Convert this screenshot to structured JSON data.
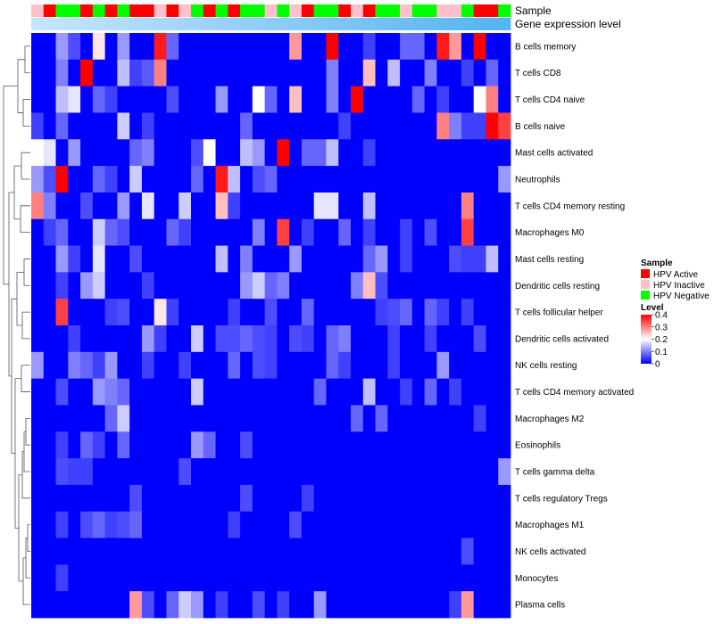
{
  "chart_data": {
    "type": "heatmap",
    "annotations": [
      {
        "name": "Sample"
      },
      {
        "name": "Gene expression level"
      }
    ],
    "sample_groups": [
      {
        "label": "HPV Active",
        "color": "#ff0000"
      },
      {
        "label": "HPV Inactive",
        "color": "#ffc0cb"
      },
      {
        "label": "HPV Negative",
        "color": "#00ff00"
      }
    ],
    "sample_track": [
      1,
      0,
      2,
      2,
      0,
      2,
      0,
      2,
      0,
      0,
      1,
      0,
      1,
      2,
      0,
      2,
      0,
      2,
      2,
      1,
      2,
      1,
      0,
      2,
      2,
      0,
      1,
      0,
      2,
      2,
      1,
      2,
      2,
      1,
      1,
      2,
      0,
      0,
      2
    ],
    "expression_track": [
      0.0,
      0.03,
      0.05,
      0.08,
      0.1,
      0.13,
      0.16,
      0.18,
      0.21,
      0.24,
      0.26,
      0.29,
      0.32,
      0.34,
      0.37,
      0.39,
      0.42,
      0.45,
      0.47,
      0.5,
      0.53,
      0.55,
      0.58,
      0.61,
      0.63,
      0.66,
      0.68,
      0.71,
      0.74,
      0.76,
      0.79,
      0.82,
      0.84,
      0.87,
      0.89,
      0.92,
      0.95,
      0.97,
      1.0
    ],
    "rows": [
      "B cells memory",
      "T cells CD8",
      "T cells CD4 naive",
      "B cells naive",
      "Mast cells activated",
      "Neutrophils",
      "T cells CD4 memory resting",
      "Macrophages M0",
      "Mast cells resting",
      "Dendritic cells resting",
      "T cells follicular helper",
      "Dendritic cells activated",
      "NK cells resting",
      "T cells CD4 memory activated",
      "Macrophages M2",
      "Eosinophils",
      "T cells gamma delta",
      "T cells regulatory  Tregs",
      "Macrophages M1",
      "NK cells activated",
      "Monocytes",
      "Plasma cells"
    ],
    "values": [
      [
        0.0,
        0.0,
        0.12,
        0.06,
        0.0,
        0.22,
        0.0,
        0.12,
        0.0,
        0.0,
        0.38,
        0.08,
        0.0,
        0.0,
        0.0,
        0.0,
        0.0,
        0.0,
        0.0,
        0.0,
        0.0,
        0.28,
        0.0,
        0.0,
        0.4,
        0.0,
        0.0,
        0.05,
        0.0,
        0.0,
        0.08,
        0.08,
        0.0,
        0.38,
        0.28,
        0.0,
        0.4,
        0.0,
        0.0
      ],
      [
        0.0,
        0.0,
        0.1,
        0.0,
        0.4,
        0.0,
        0.0,
        0.15,
        0.05,
        0.07,
        0.3,
        0.0,
        0.0,
        0.0,
        0.0,
        0.0,
        0.0,
        0.0,
        0.0,
        0.0,
        0.0,
        0.0,
        0.0,
        0.0,
        0.1,
        0.0,
        0.0,
        0.25,
        0.0,
        0.15,
        0.0,
        0.0,
        0.1,
        0.0,
        0.0,
        0.05,
        0.0,
        0.08,
        0.0
      ],
      [
        0.0,
        0.0,
        0.15,
        0.18,
        0.0,
        0.08,
        0.05,
        0.0,
        0.0,
        0.0,
        0.0,
        0.06,
        0.0,
        0.0,
        0.0,
        0.12,
        0.0,
        0.0,
        0.2,
        0.08,
        0.0,
        0.25,
        0.0,
        0.0,
        0.1,
        0.0,
        0.4,
        0.0,
        0.0,
        0.0,
        0.0,
        0.08,
        0.0,
        0.05,
        0.0,
        0.0,
        0.2,
        0.3,
        0.0
      ],
      [
        0.05,
        0.0,
        0.08,
        0.0,
        0.0,
        0.0,
        0.0,
        0.16,
        0.0,
        0.05,
        0.0,
        0.0,
        0.0,
        0.0,
        0.0,
        0.0,
        0.0,
        0.08,
        0.0,
        0.0,
        0.0,
        0.0,
        0.0,
        0.0,
        0.0,
        0.05,
        0.0,
        0.0,
        0.0,
        0.0,
        0.0,
        0.0,
        0.0,
        0.3,
        0.1,
        0.05,
        0.05,
        0.4,
        0.35
      ],
      [
        0.2,
        0.18,
        0.0,
        0.12,
        0.0,
        0.0,
        0.0,
        0.0,
        0.08,
        0.1,
        0.0,
        0.0,
        0.0,
        0.06,
        0.2,
        0.0,
        0.0,
        0.15,
        0.12,
        0.0,
        0.4,
        0.0,
        0.08,
        0.08,
        0.15,
        0.0,
        0.0,
        0.05,
        0.0,
        0.0,
        0.0,
        0.0,
        0.0,
        0.0,
        0.0,
        0.0,
        0.0,
        0.0,
        0.0
      ],
      [
        0.12,
        0.06,
        0.4,
        0.0,
        0.0,
        0.08,
        0.05,
        0.0,
        0.16,
        0.0,
        0.0,
        0.0,
        0.0,
        0.08,
        0.0,
        0.38,
        0.15,
        0.0,
        0.06,
        0.08,
        0.0,
        0.0,
        0.0,
        0.0,
        0.0,
        0.0,
        0.0,
        0.0,
        0.0,
        0.0,
        0.0,
        0.0,
        0.0,
        0.0,
        0.0,
        0.0,
        0.0,
        0.0,
        0.12
      ],
      [
        0.3,
        0.1,
        0.0,
        0.0,
        0.06,
        0.0,
        0.0,
        0.12,
        0.0,
        0.18,
        0.0,
        0.0,
        0.16,
        0.0,
        0.0,
        0.25,
        0.05,
        0.0,
        0.0,
        0.0,
        0.0,
        0.0,
        0.0,
        0.18,
        0.18,
        0.0,
        0.0,
        0.15,
        0.0,
        0.0,
        0.0,
        0.0,
        0.0,
        0.0,
        0.0,
        0.3,
        0.0,
        0.0,
        0.0
      ],
      [
        0.0,
        0.05,
        0.08,
        0.0,
        0.0,
        0.16,
        0.08,
        0.06,
        0.0,
        0.0,
        0.0,
        0.08,
        0.05,
        0.0,
        0.0,
        0.0,
        0.0,
        0.0,
        0.1,
        0.0,
        0.35,
        0.0,
        0.05,
        0.0,
        0.0,
        0.08,
        0.0,
        0.05,
        0.0,
        0.0,
        0.05,
        0.0,
        0.06,
        0.0,
        0.0,
        0.35,
        0.0,
        0.0,
        0.0
      ],
      [
        0.0,
        0.0,
        0.12,
        0.05,
        0.0,
        0.18,
        0.0,
        0.0,
        0.06,
        0.0,
        0.0,
        0.0,
        0.0,
        0.0,
        0.0,
        0.15,
        0.0,
        0.1,
        0.0,
        0.0,
        0.0,
        0.12,
        0.0,
        0.0,
        0.0,
        0.0,
        0.0,
        0.08,
        0.12,
        0.0,
        0.05,
        0.0,
        0.0,
        0.0,
        0.06,
        0.05,
        0.05,
        0.15,
        0.0
      ],
      [
        0.0,
        0.0,
        0.05,
        0.0,
        0.12,
        0.16,
        0.0,
        0.0,
        0.0,
        0.05,
        0.0,
        0.0,
        0.0,
        0.0,
        0.0,
        0.0,
        0.0,
        0.12,
        0.16,
        0.08,
        0.1,
        0.0,
        0.0,
        0.0,
        0.0,
        0.0,
        0.1,
        0.25,
        0.06,
        0.0,
        0.0,
        0.0,
        0.0,
        0.0,
        0.0,
        0.0,
        0.0,
        0.0,
        0.0
      ],
      [
        0.0,
        0.0,
        0.35,
        0.0,
        0.0,
        0.0,
        0.05,
        0.06,
        0.0,
        0.0,
        0.22,
        0.05,
        0.0,
        0.0,
        0.0,
        0.0,
        0.05,
        0.0,
        0.0,
        0.06,
        0.0,
        0.0,
        0.08,
        0.0,
        0.0,
        0.0,
        0.0,
        0.0,
        0.05,
        0.06,
        0.08,
        0.0,
        0.08,
        0.05,
        0.0,
        0.05,
        0.0,
        0.0,
        0.0
      ],
      [
        0.0,
        0.0,
        0.0,
        0.05,
        0.0,
        0.0,
        0.0,
        0.0,
        0.0,
        0.12,
        0.05,
        0.0,
        0.0,
        0.16,
        0.0,
        0.06,
        0.06,
        0.08,
        0.06,
        0.05,
        0.0,
        0.06,
        0.05,
        0.0,
        0.08,
        0.1,
        0.0,
        0.0,
        0.0,
        0.05,
        0.0,
        0.0,
        0.05,
        0.0,
        0.0,
        0.0,
        0.06,
        0.0,
        0.0
      ],
      [
        0.12,
        0.0,
        0.0,
        0.1,
        0.08,
        0.05,
        0.12,
        0.0,
        0.0,
        0.05,
        0.0,
        0.0,
        0.05,
        0.0,
        0.0,
        0.0,
        0.08,
        0.0,
        0.06,
        0.05,
        0.0,
        0.0,
        0.0,
        0.0,
        0.08,
        0.05,
        0.0,
        0.0,
        0.0,
        0.05,
        0.0,
        0.0,
        0.0,
        0.12,
        0.0,
        0.0,
        0.0,
        0.0,
        0.0
      ],
      [
        0.0,
        0.0,
        0.06,
        0.0,
        0.0,
        0.12,
        0.1,
        0.08,
        0.0,
        0.0,
        0.0,
        0.0,
        0.0,
        0.16,
        0.0,
        0.0,
        0.0,
        0.0,
        0.0,
        0.0,
        0.0,
        0.0,
        0.0,
        0.08,
        0.0,
        0.0,
        0.0,
        0.15,
        0.0,
        0.0,
        0.05,
        0.0,
        0.08,
        0.0,
        0.05,
        0.0,
        0.0,
        0.0,
        0.0
      ],
      [
        0.0,
        0.0,
        0.0,
        0.0,
        0.0,
        0.0,
        0.08,
        0.16,
        0.0,
        0.0,
        0.0,
        0.0,
        0.0,
        0.0,
        0.0,
        0.0,
        0.0,
        0.0,
        0.0,
        0.0,
        0.0,
        0.0,
        0.0,
        0.0,
        0.0,
        0.0,
        0.08,
        0.0,
        0.08,
        0.0,
        0.0,
        0.0,
        0.0,
        0.0,
        0.0,
        0.0,
        0.05,
        0.0,
        0.0
      ],
      [
        0.0,
        0.0,
        0.05,
        0.0,
        0.08,
        0.05,
        0.0,
        0.08,
        0.0,
        0.0,
        0.0,
        0.0,
        0.0,
        0.12,
        0.08,
        0.0,
        0.0,
        0.06,
        0.0,
        0.0,
        0.0,
        0.0,
        0.0,
        0.0,
        0.0,
        0.0,
        0.0,
        0.0,
        0.0,
        0.0,
        0.0,
        0.0,
        0.0,
        0.0,
        0.0,
        0.0,
        0.0,
        0.0,
        0.0
      ],
      [
        0.0,
        0.0,
        0.06,
        0.05,
        0.05,
        0.0,
        0.0,
        0.0,
        0.0,
        0.0,
        0.0,
        0.0,
        0.06,
        0.0,
        0.0,
        0.0,
        0.0,
        0.0,
        0.0,
        0.0,
        0.0,
        0.0,
        0.0,
        0.0,
        0.0,
        0.0,
        0.0,
        0.0,
        0.0,
        0.0,
        0.0,
        0.0,
        0.0,
        0.0,
        0.0,
        0.0,
        0.0,
        0.0,
        0.12
      ],
      [
        0.0,
        0.0,
        0.0,
        0.0,
        0.0,
        0.0,
        0.0,
        0.0,
        0.06,
        0.0,
        0.0,
        0.0,
        0.0,
        0.0,
        0.0,
        0.0,
        0.0,
        0.06,
        0.0,
        0.0,
        0.0,
        0.0,
        0.05,
        0.0,
        0.0,
        0.0,
        0.0,
        0.0,
        0.0,
        0.0,
        0.0,
        0.0,
        0.0,
        0.0,
        0.0,
        0.0,
        0.0,
        0.0,
        0.0
      ],
      [
        0.0,
        0.0,
        0.05,
        0.0,
        0.06,
        0.08,
        0.05,
        0.06,
        0.08,
        0.0,
        0.0,
        0.0,
        0.0,
        0.0,
        0.0,
        0.0,
        0.05,
        0.0,
        0.0,
        0.0,
        0.0,
        0.06,
        0.0,
        0.0,
        0.0,
        0.0,
        0.0,
        0.0,
        0.0,
        0.0,
        0.0,
        0.0,
        0.0,
        0.0,
        0.0,
        0.0,
        0.0,
        0.0,
        0.0
      ],
      [
        0.0,
        0.0,
        0.0,
        0.0,
        0.0,
        0.0,
        0.0,
        0.0,
        0.0,
        0.0,
        0.0,
        0.0,
        0.0,
        0.0,
        0.0,
        0.0,
        0.0,
        0.0,
        0.0,
        0.0,
        0.0,
        0.0,
        0.0,
        0.0,
        0.0,
        0.0,
        0.0,
        0.0,
        0.0,
        0.0,
        0.0,
        0.0,
        0.0,
        0.0,
        0.0,
        0.06,
        0.0,
        0.0,
        0.0
      ],
      [
        0.0,
        0.0,
        0.05,
        0.0,
        0.0,
        0.0,
        0.0,
        0.0,
        0.0,
        0.0,
        0.0,
        0.0,
        0.0,
        0.0,
        0.0,
        0.0,
        0.0,
        0.0,
        0.0,
        0.0,
        0.0,
        0.0,
        0.0,
        0.0,
        0.0,
        0.0,
        0.0,
        0.0,
        0.0,
        0.0,
        0.0,
        0.0,
        0.0,
        0.0,
        0.0,
        0.0,
        0.0,
        0.0,
        0.0
      ],
      [
        0.0,
        0.0,
        0.0,
        0.0,
        0.0,
        0.0,
        0.0,
        0.0,
        0.28,
        0.06,
        0.0,
        0.08,
        0.16,
        0.12,
        0.0,
        0.05,
        0.0,
        0.0,
        0.06,
        0.0,
        0.05,
        0.0,
        0.0,
        0.12,
        0.0,
        0.0,
        0.0,
        0.0,
        0.0,
        0.0,
        0.0,
        0.0,
        0.0,
        0.0,
        0.05,
        0.28,
        0.0,
        0.0,
        0.0
      ]
    ],
    "legend": {
      "sample_title": "Sample",
      "level_title": "Level",
      "level_ticks": [
        "0.4",
        "0.3",
        "0.2",
        "0.1",
        "0"
      ],
      "level_range": [
        0,
        0.4
      ]
    },
    "colors": {
      "low": "#0000ff",
      "mid": "#ffffff",
      "high": "#ff0000",
      "expr_low": "#c6e5fb",
      "expr_high": "#56b4f2"
    }
  }
}
